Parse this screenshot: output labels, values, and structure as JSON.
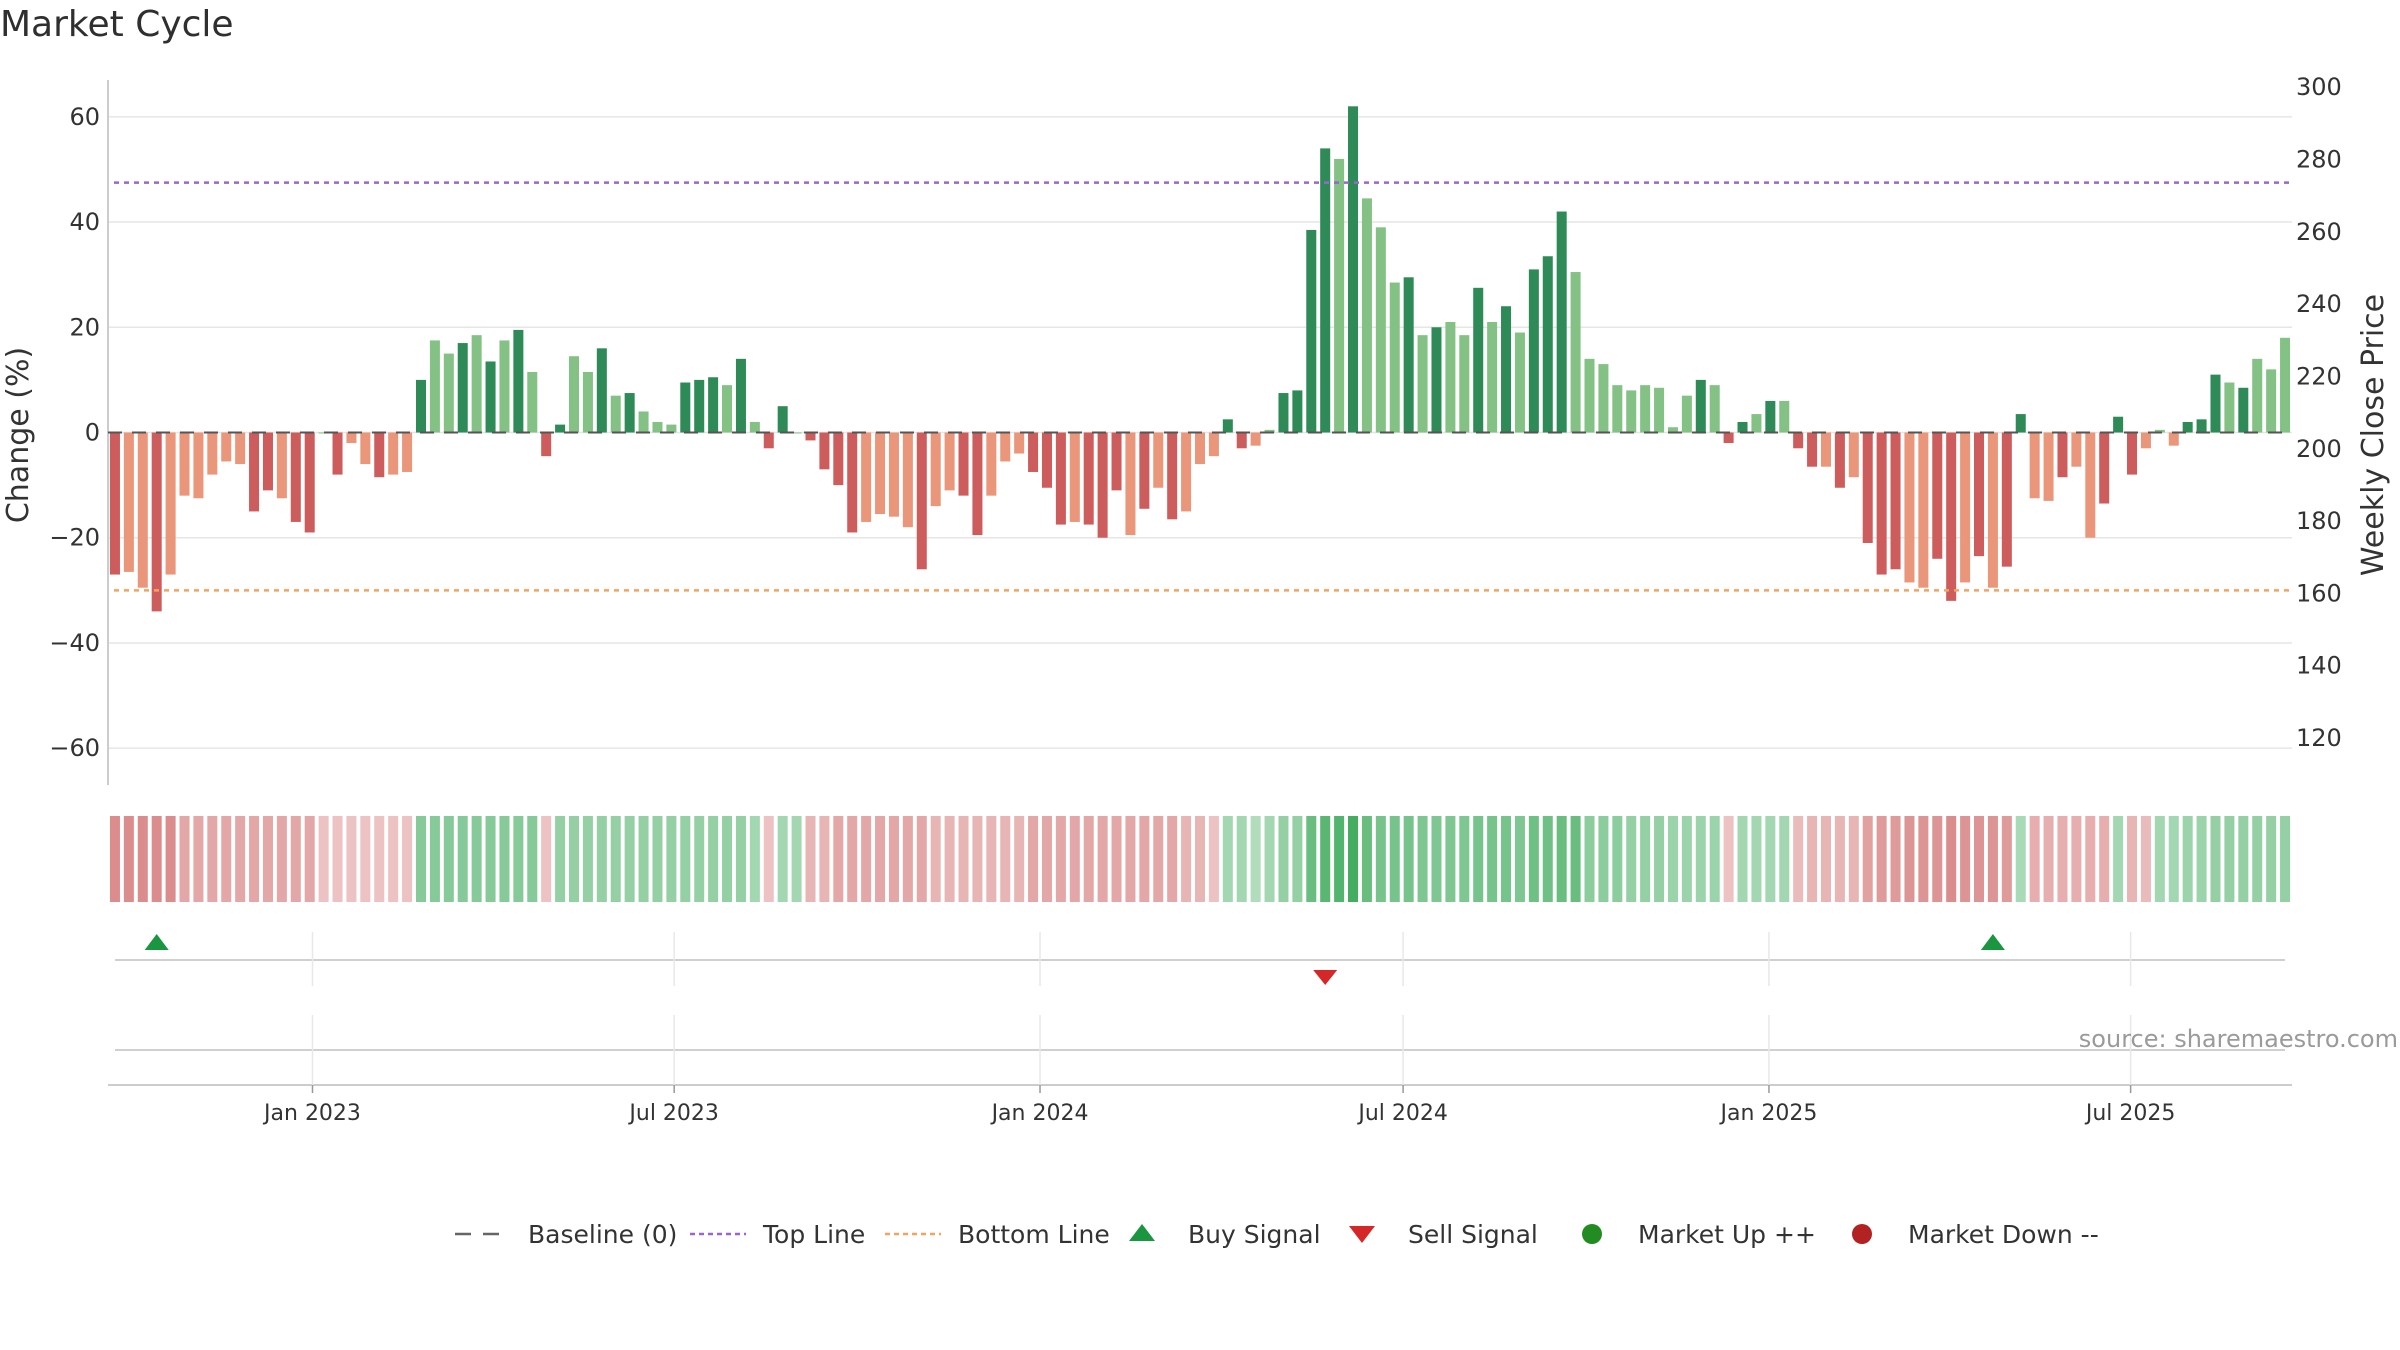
{
  "title": "Market Cycle",
  "source": "source: sharemaestro.com",
  "colors": {
    "up_dark": "#2e8b57",
    "up_light": "#84c184",
    "down_dark": "#cd5c5c",
    "down_light": "#e9967a",
    "top_line": "#9966cc",
    "bottom_line": "#f4a460",
    "buy": "#1a9641",
    "sell": "#d62728",
    "market_up": "#228b22",
    "market_down": "#b22222"
  },
  "chart_data": {
    "type": "bar",
    "ylabel_left": "Change (%)",
    "ylabel_right": "Weekly Close Price",
    "ylim_left": [
      -67,
      67
    ],
    "ylim_right": [
      107,
      302
    ],
    "yticks_left": [
      "60",
      "40",
      "20",
      "0",
      "−20",
      "−40",
      "−60"
    ],
    "yticks_left_values": [
      60,
      40,
      20,
      0,
      -20,
      -40,
      -60
    ],
    "yticks_right": [
      "300",
      "280",
      "260",
      "240",
      "220",
      "200",
      "180",
      "160",
      "140",
      "120"
    ],
    "yticks_right_values": [
      300,
      280,
      260,
      240,
      220,
      200,
      180,
      160,
      140,
      120
    ],
    "top_line": 47.5,
    "bottom_line": -30,
    "x_labels": [
      "Jan 2023",
      "Jul 2023",
      "Jan 2024",
      "Jul 2024",
      "Jan 2025",
      "Jul 2025"
    ],
    "x_label_weeks": [
      14.7,
      40.7,
      67.0,
      93.1,
      119.4,
      145.4
    ],
    "values": [
      -27,
      -26.5,
      -29.5,
      -34,
      -27,
      -12,
      -12.5,
      -8,
      -5.5,
      -6,
      -15,
      -11,
      -12.5,
      -17,
      -19,
      0,
      -8,
      -2,
      -6,
      -8.5,
      -8,
      -7.5,
      10,
      17.5,
      15,
      17,
      18.5,
      13.5,
      17.5,
      19.5,
      11.5,
      -4.5,
      1.5,
      14.5,
      11.5,
      16,
      7,
      7.5,
      4,
      2,
      1.5,
      9.5,
      10,
      10.5,
      9,
      14,
      2,
      -3,
      5,
      0,
      -1.5,
      -7,
      -10,
      -19,
      -17,
      -15.5,
      -16,
      -18,
      -26,
      -14,
      -11,
      -12,
      -19.5,
      -12,
      -5.5,
      -4,
      -7.5,
      -10.5,
      -17.5,
      -17,
      -17.5,
      -20,
      -11,
      -19.5,
      -14.5,
      -10.5,
      -16.5,
      -15,
      -6,
      -4.5,
      2.5,
      -3,
      -2.5,
      0.5,
      7.5,
      8,
      38.5,
      54,
      52,
      62,
      44.5,
      39,
      28.5,
      29.5,
      18.5,
      20,
      21,
      18.5,
      27.5,
      21,
      24,
      19,
      31,
      33.5,
      42,
      30.5,
      14,
      13,
      9,
      8,
      9,
      8.5,
      1,
      7,
      10,
      9,
      -2,
      2,
      3.5,
      6,
      6,
      -3,
      -6.5,
      -6.5,
      -10.5,
      -8.5,
      -21,
      -27,
      -26,
      -28.5,
      -29.5,
      -24,
      -32,
      -28.5,
      -23.5,
      -29.5,
      -25.5,
      3.5,
      -12.5,
      -13,
      -8.5,
      -6.5,
      -20,
      -13.5,
      3,
      -8,
      -3,
      0.5,
      -2.5,
      2,
      2.5,
      11,
      9.5,
      8.5,
      14,
      12,
      18
    ],
    "dark_weeks": [
      0,
      3,
      10,
      11,
      13,
      14,
      16,
      19,
      22,
      25,
      27,
      29,
      31,
      32,
      35,
      37,
      41,
      42,
      43,
      45,
      47,
      48,
      50,
      51,
      52,
      53,
      58,
      61,
      62,
      66,
      67,
      68,
      70,
      71,
      72,
      74,
      76,
      80,
      81,
      84,
      85,
      86,
      87,
      89,
      93,
      95,
      98,
      100,
      102,
      103,
      104,
      114,
      116,
      117,
      119,
      121,
      122,
      124,
      126,
      127,
      128,
      131,
      132,
      134,
      136,
      137,
      140,
      143,
      144,
      145,
      149,
      150,
      151,
      153,
      157
    ],
    "cycle_intensity": [
      -0.6,
      -0.6,
      -0.6,
      -0.6,
      -0.6,
      -0.4,
      -0.4,
      -0.4,
      -0.4,
      -0.4,
      -0.4,
      -0.4,
      -0.4,
      -0.4,
      -0.4,
      -0.2,
      -0.2,
      -0.2,
      -0.2,
      -0.2,
      -0.2,
      -0.2,
      0.5,
      0.5,
      0.5,
      0.5,
      0.5,
      0.5,
      0.5,
      0.5,
      0.5,
      -0.2,
      0.4,
      0.4,
      0.4,
      0.4,
      0.4,
      0.4,
      0.4,
      0.4,
      0.4,
      0.4,
      0.4,
      0.4,
      0.4,
      0.4,
      0.3,
      -0.2,
      0.3,
      0.3,
      -0.3,
      -0.3,
      -0.4,
      -0.4,
      -0.4,
      -0.4,
      -0.4,
      -0.4,
      -0.4,
      -0.3,
      -0.3,
      -0.3,
      -0.3,
      -0.3,
      -0.3,
      -0.3,
      -0.4,
      -0.4,
      -0.4,
      -0.4,
      -0.4,
      -0.4,
      -0.4,
      -0.4,
      -0.4,
      -0.4,
      -0.4,
      -0.3,
      -0.3,
      -0.2,
      0.3,
      0.3,
      0.2,
      0.3,
      0.4,
      0.4,
      0.7,
      0.8,
      0.85,
      0.95,
      0.7,
      0.6,
      0.6,
      0.6,
      0.55,
      0.55,
      0.55,
      0.55,
      0.6,
      0.6,
      0.6,
      0.55,
      0.65,
      0.65,
      0.7,
      0.7,
      0.45,
      0.45,
      0.45,
      0.4,
      0.4,
      0.4,
      0.35,
      0.35,
      0.35,
      0.35,
      -0.2,
      0.3,
      0.3,
      0.3,
      0.3,
      -0.25,
      -0.3,
      -0.3,
      -0.3,
      -0.3,
      -0.45,
      -0.5,
      -0.5,
      -0.55,
      -0.55,
      -0.55,
      -0.6,
      -0.55,
      -0.55,
      -0.55,
      -0.5,
      0.25,
      -0.35,
      -0.35,
      -0.35,
      -0.35,
      -0.35,
      -0.35,
      0.3,
      -0.3,
      -0.25,
      0.3,
      0.3,
      0.35,
      0.35,
      0.4,
      0.4,
      0.4,
      0.4,
      0.4,
      0.4
    ],
    "buy_signal_weeks": [
      3,
      135
    ],
    "sell_signal_weeks": [
      87
    ]
  },
  "legend": [
    {
      "key": "baseline",
      "label": "Baseline (0)",
      "marker": "dash-gray"
    },
    {
      "key": "top",
      "label": "Top Line",
      "marker": "dot-purple"
    },
    {
      "key": "bottom",
      "label": "Bottom Line",
      "marker": "dot-orange"
    },
    {
      "key": "buy",
      "label": "Buy Signal",
      "marker": "triangle-up-green"
    },
    {
      "key": "sell",
      "label": "Sell Signal",
      "marker": "triangle-down-red"
    },
    {
      "key": "mup",
      "label": "Market Up ++",
      "marker": "circle-green"
    },
    {
      "key": "mdown",
      "label": "Market Down --",
      "marker": "circle-red"
    }
  ]
}
